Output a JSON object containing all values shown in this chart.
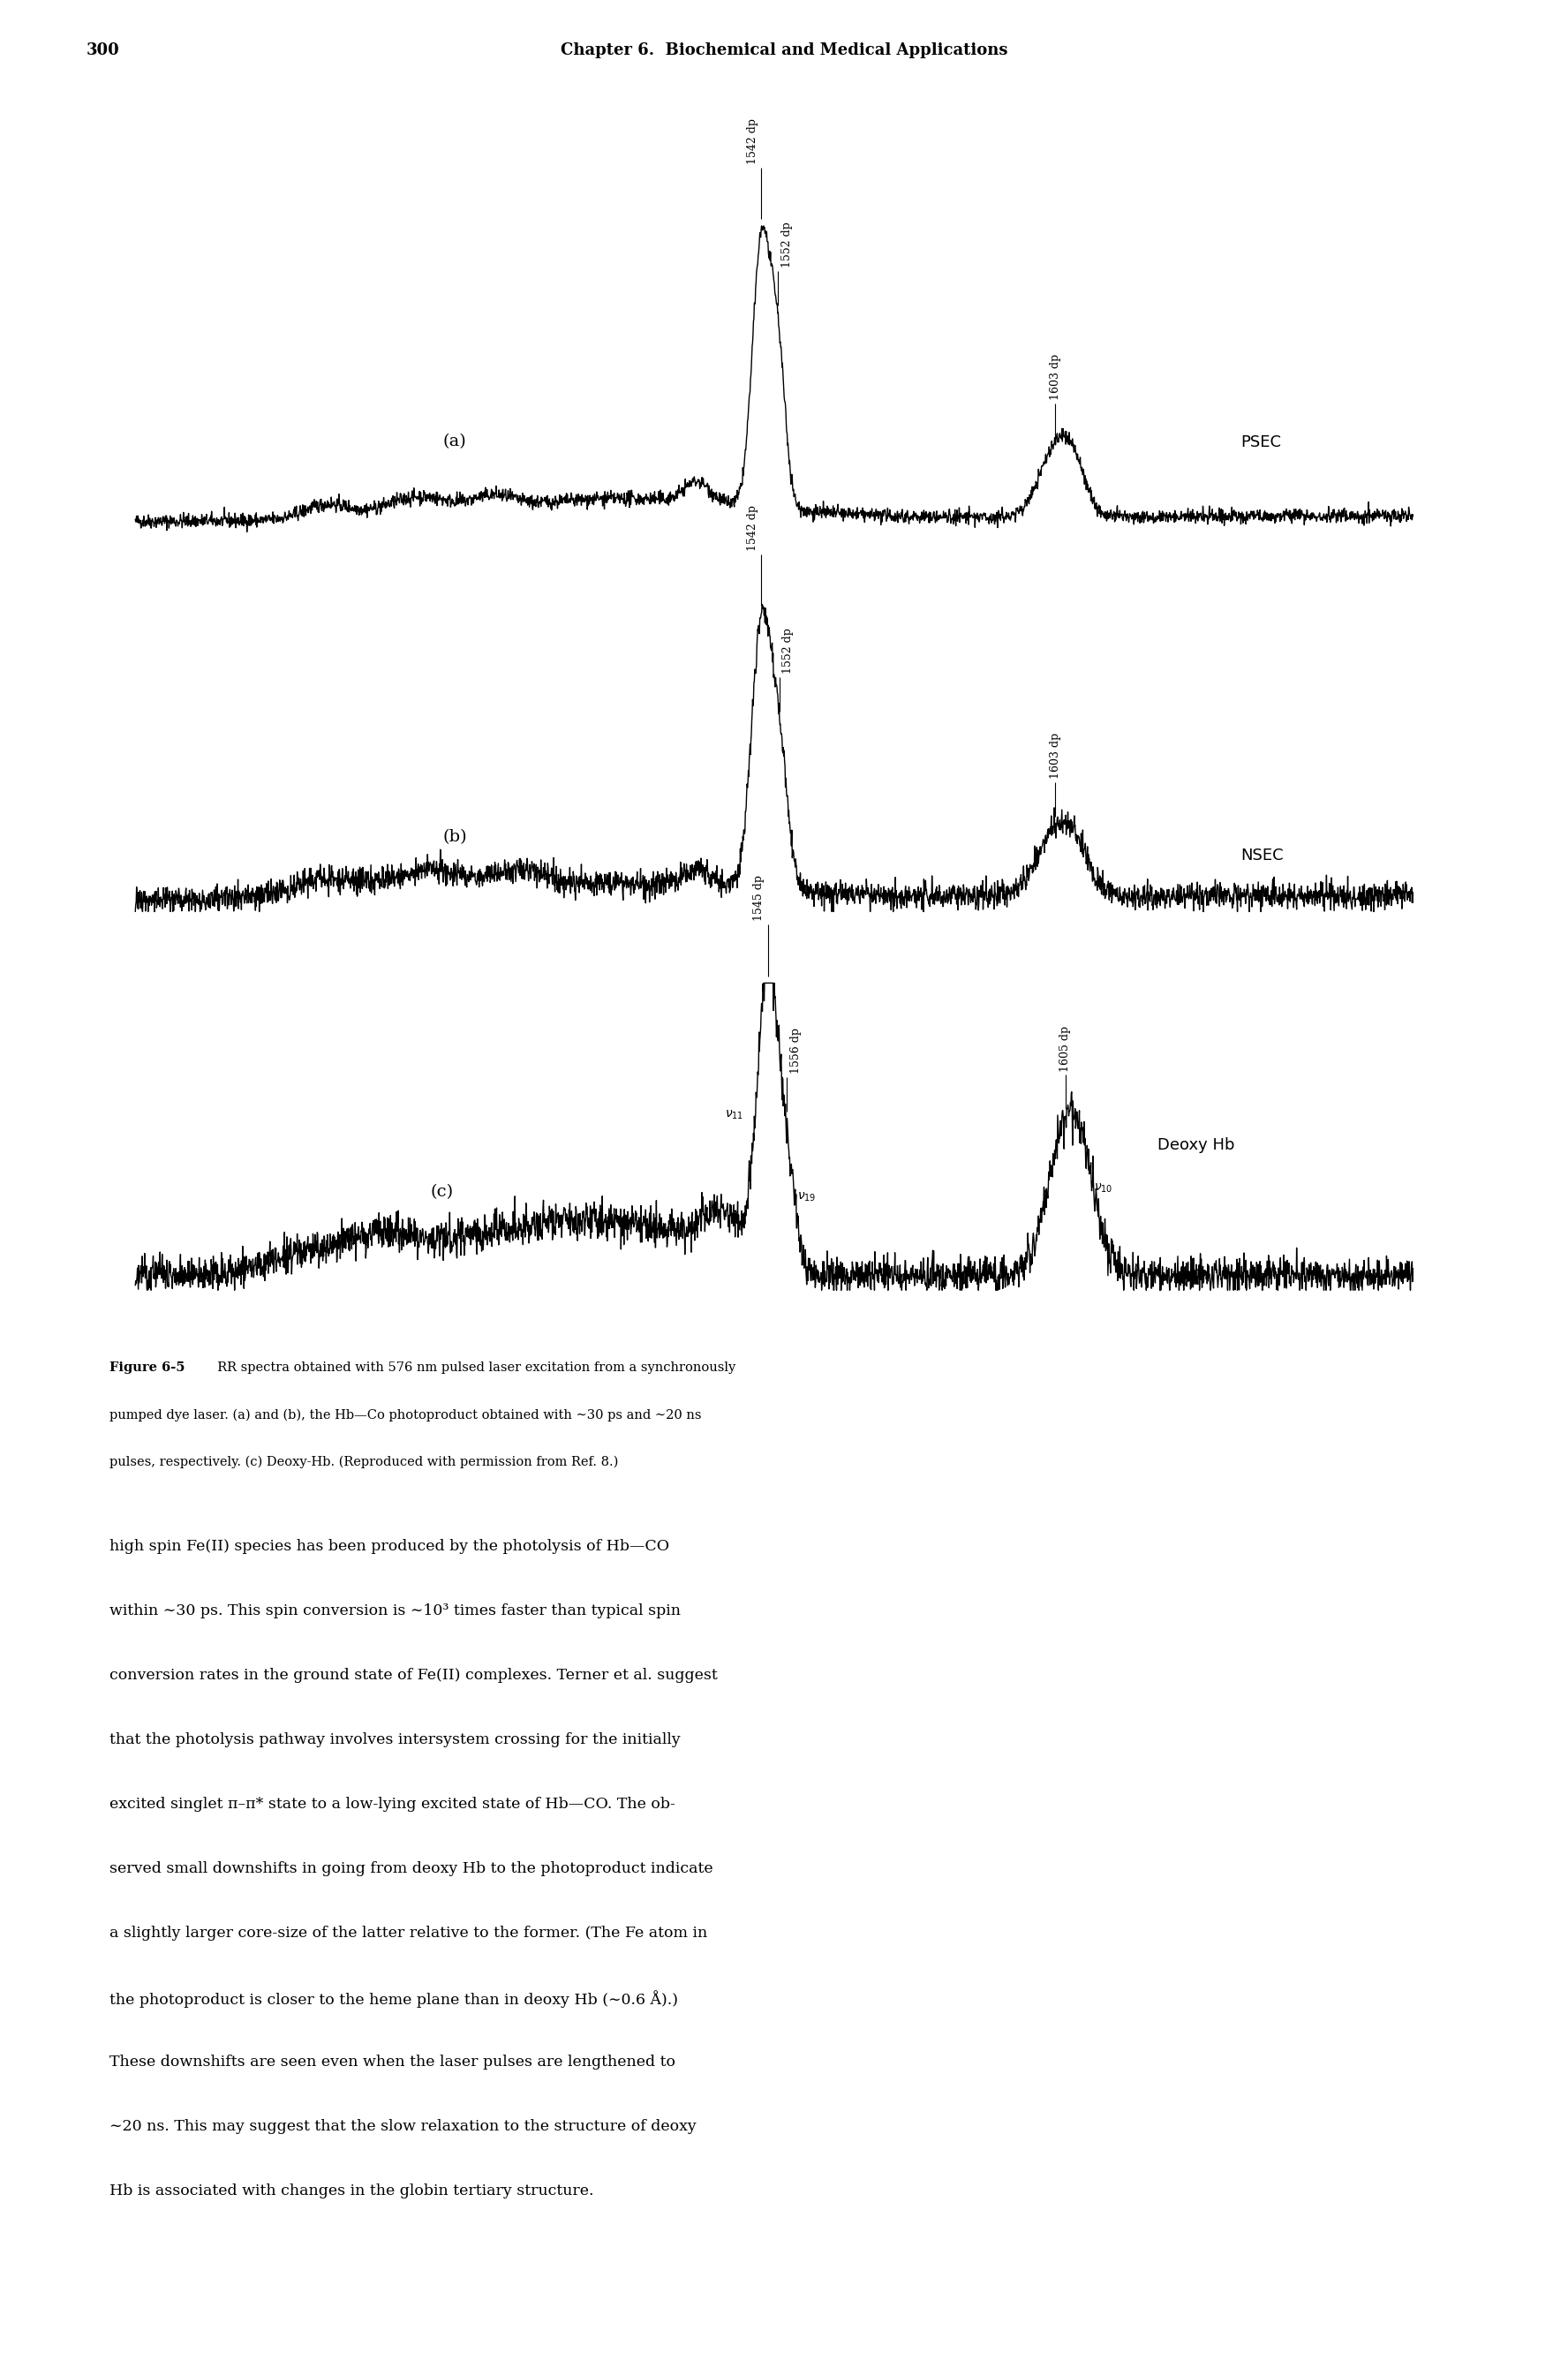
{
  "page_number": "300",
  "chapter_header": "Chapter 6.  Biochemical and Medical Applications",
  "background_color": "#ffffff",
  "spectra_line_color": "#000000",
  "fig_width": 17.76,
  "fig_height": 26.82,
  "spectra": {
    "a_label": "(a)",
    "b_label": "(b)",
    "c_label": "(c)",
    "a_annotation": "PSEC",
    "b_annotation": "NSEC",
    "c_annotation": "Deoxy Hb"
  },
  "caption_lines": [
    "Figure 6-5  RR spectra obtained with 576 nm pulsed laser excitation from a synchronously",
    "pumped dye laser. (a) and (b), the Hb—Co photoproduct obtained with ∼30 ps and ∼20 ns",
    "pulses, respectively. (c) Deoxy-Hb. (Reproduced with permission from Ref. 8.)"
  ],
  "body_lines": [
    "high spin Fe(II) species has been produced by the photolysis of Hb—CO",
    "within ∼30 ps. This spin conversion is ∼10³ times faster than typical spin",
    "conversion rates in the ground state of Fe(II) complexes. Terner et al. suggest",
    "that the photolysis pathway involves intersystem crossing for the initially",
    "excited singlet π–π* state to a low-lying excited state of Hb—CO. The ob-",
    "served small downshifts in going from deoxy Hb to the photoproduct indicate",
    "a slightly larger core-size of the latter relative to the former. (The Fe atom in",
    "the photoproduct is closer to the heme plane than in deoxy Hb (∼0.6 Å).)",
    "These downshifts are seen even when the laser pulses are lengthened to",
    "∼20 ns. This may suggest that the slow relaxation to the structure of deoxy",
    "Hb is associated with changes in the globin tertiary structure."
  ]
}
